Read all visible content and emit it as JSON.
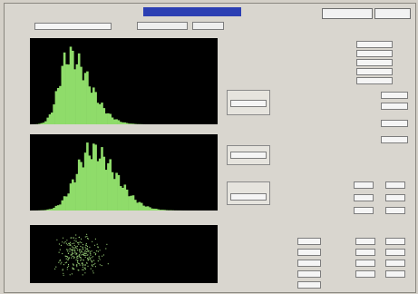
{
  "window": {
    "title": ""
  },
  "buttons": {
    "btn1": "",
    "btn2": ""
  },
  "toolbar": {
    "field1": "",
    "dropdown1": "",
    "dropdown2": ""
  },
  "colors": {
    "title_bg": "#2b3fb3",
    "hist_fill": "#8fdc6a",
    "plot_bg": "#000000",
    "scatter": "#9bd27a"
  },
  "plots": [
    {
      "name": "histogram-1",
      "type": "bar"
    },
    {
      "name": "histogram-2",
      "type": "bar"
    },
    {
      "name": "scatter-plot",
      "type": "scatter"
    }
  ],
  "panels": {
    "side1": {
      "title": "",
      "values": [
        "",
        ""
      ]
    },
    "side2": {
      "title": "",
      "values": [
        "",
        ""
      ]
    },
    "side3": {
      "title": "",
      "values": [
        "",
        ""
      ]
    }
  },
  "right": {
    "rows_top": [
      "",
      "",
      "",
      "",
      ""
    ],
    "rows_mid": [
      "",
      "",
      "",
      ""
    ],
    "rows_low": [
      "",
      "",
      ""
    ],
    "red_rows": [
      "",
      "",
      "",
      "",
      ""
    ]
  }
}
